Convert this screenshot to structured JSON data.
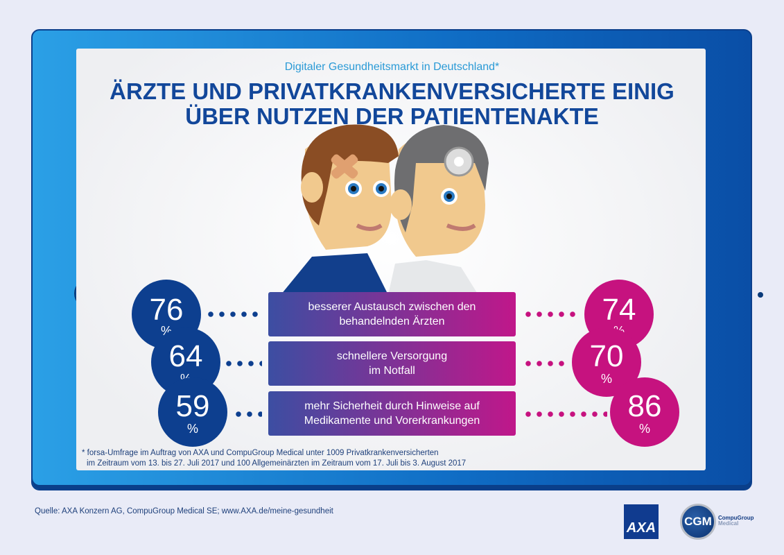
{
  "subtitle": "Digitaler Gesundheitsmarkt in Deutschland*",
  "title_line1": "ÄRZTE UND PRIVATKRANKENVERSICHERTE EINIG",
  "title_line2": "ÜBER NUTZEN DER PATIENTENAKTE",
  "chart_data": {
    "type": "table",
    "series": [
      {
        "name": "Privatkrankenversicherte"
      },
      {
        "name": "Ärzte"
      }
    ],
    "rows": [
      {
        "label": "besserer Austausch zwischen den behandelnden Ärzten",
        "left": "76",
        "right": "74"
      },
      {
        "label": "schnellere Versorgung im Notfall",
        "left": "64",
        "right": "70"
      },
      {
        "label": "mehr Sicherheit durch Hinweise auf Medikamente und Vorerkrankungen",
        "left": "59",
        "right": "86"
      }
    ]
  },
  "percent": "%",
  "footnote_line1": "* forsa-Umfrage im Auftrag von AXA und CompuGroup Medical unter 1009 Privatkrankenversicherten",
  "footnote_line2": "im Zeitraum vom 13. bis 27. Juli 2017 und 100 Allgemeinärzten im Zeitraum vom 17. Juli bis 3. August 2017",
  "source": "Quelle:  AXA Konzern AG, CompuGroup Medical SE; www.AXA.de/meine-gesundheit",
  "logos": {
    "axa": "AXA",
    "cgm": "CGM",
    "cgm_name1": "CompuGroup",
    "cgm_name2": "Medical"
  },
  "colors": {
    "left": "#0d3f8f",
    "right": "#c6127f",
    "frame": "#1a7fd0"
  }
}
